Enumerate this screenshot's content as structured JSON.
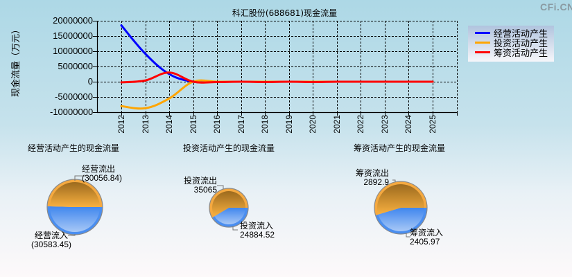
{
  "watermark": "CFi.CN",
  "main_chart": {
    "title": "科汇股份(688681)现金流量",
    "ylabel": "现金流量（万元）",
    "y_ticks": [
      "20000000",
      "15000000",
      "10000000",
      "5000000",
      "0",
      "-5000000",
      "-10000000"
    ],
    "x_ticks": [
      "2012",
      "2013",
      "2014",
      "2015",
      "2016",
      "2017",
      "2018",
      "2019",
      "2020",
      "2021",
      "2022",
      "2023",
      "2024",
      "2025"
    ],
    "legend": [
      {
        "label": "经营活动产生",
        "color": "#0000ff"
      },
      {
        "label": "投资活动产生",
        "color": "#ffa500"
      },
      {
        "label": "筹资活动产生",
        "color": "#ff0000"
      }
    ]
  },
  "pies": [
    {
      "title": "经营活动产生的现金流量",
      "outflow_label": "经营流出",
      "outflow_value": "(30056.84)",
      "inflow_label": "经营流入",
      "inflow_value": "(30583.45)"
    },
    {
      "title": "投资活动产生的现金流量",
      "outflow_label": "投资流出",
      "outflow_value": "35065",
      "inflow_label": "投资流入",
      "inflow_value": "24884.52"
    },
    {
      "title": "筹资活动产生的现金流量",
      "outflow_label": "筹资流出",
      "outflow_value": "2892.9",
      "inflow_label": "筹资流入",
      "inflow_value": "2405.97"
    }
  ],
  "chart_data": [
    {
      "type": "line",
      "title": "科汇股份(688681)现金流量",
      "xlabel": "",
      "ylabel": "现金流量（万元）",
      "x": [
        2012,
        2013,
        2014,
        2015,
        2016,
        2017,
        2018,
        2019,
        2020,
        2021,
        2022,
        2023,
        2024,
        2025
      ],
      "ylim": [
        -10000000,
        20000000
      ],
      "grid": true,
      "legend_position": "right",
      "series": [
        {
          "name": "经营活动产生",
          "color": "#0000ff",
          "values": [
            18500000,
            9200000,
            2500000,
            0,
            0,
            0,
            0,
            0,
            0,
            0,
            0,
            0,
            0,
            0
          ]
        },
        {
          "name": "投资活动产生",
          "color": "#ffa500",
          "values": [
            -8000000,
            -8700000,
            -5500000,
            0,
            0,
            0,
            0,
            0,
            0,
            0,
            0,
            0,
            0,
            0
          ]
        },
        {
          "name": "筹资活动产生",
          "color": "#ff0000",
          "values": [
            -200000,
            400000,
            3000000,
            0,
            -100000,
            0,
            -100000,
            0,
            -100000,
            0,
            0,
            0,
            0,
            0
          ]
        }
      ]
    },
    {
      "type": "pie",
      "title": "经营活动产生的现金流量",
      "categories": [
        "经营流出",
        "经营流入"
      ],
      "values": [
        30056.84,
        30583.45
      ]
    },
    {
      "type": "pie",
      "title": "投资活动产生的现金流量",
      "categories": [
        "投资流出",
        "投资流入"
      ],
      "values": [
        35065,
        24884.52
      ]
    },
    {
      "type": "pie",
      "title": "筹资活动产生的现金流量",
      "categories": [
        "筹资流出",
        "筹资流入"
      ],
      "values": [
        2892.9,
        2405.97
      ]
    }
  ]
}
